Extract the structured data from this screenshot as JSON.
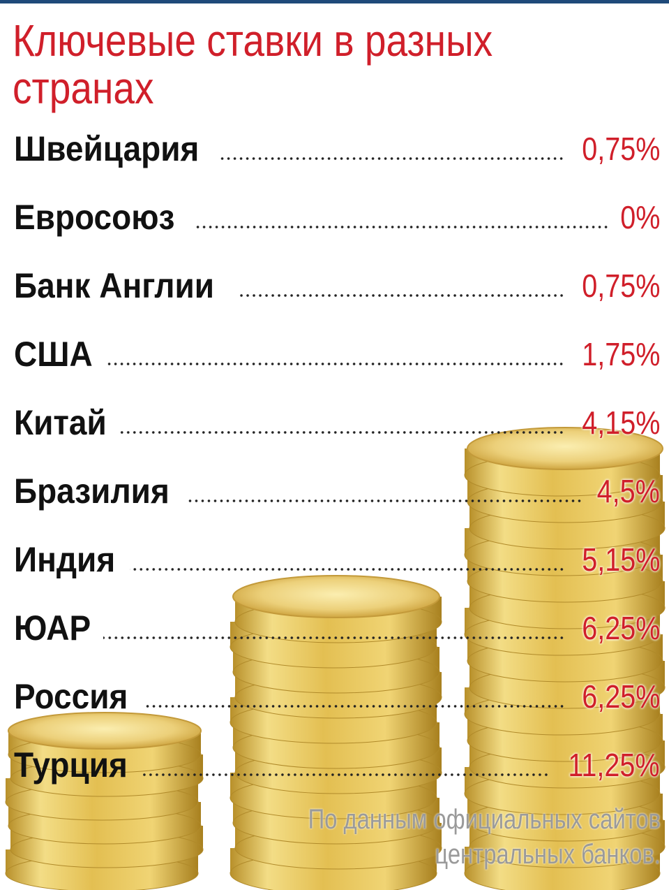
{
  "chart_data": {
    "type": "table",
    "title": "Ключевые ставки в разных странах",
    "rows": [
      {
        "label": "Швейцария",
        "value": "0,75%"
      },
      {
        "label": "Евросоюз",
        "value": "0%"
      },
      {
        "label": "Банк Англии",
        "value": "0,75%"
      },
      {
        "label": "США",
        "value": "1,75%"
      },
      {
        "label": "Китай",
        "value": "4,15%"
      },
      {
        "label": "Бразилия",
        "value": "4,5%"
      },
      {
        "label": "Индия",
        "value": "5,15%"
      },
      {
        "label": "ЮАР",
        "value": "6,25%"
      },
      {
        "label": "Россия",
        "value": "6,25%"
      },
      {
        "label": "Турция",
        "value": "11,25%"
      }
    ],
    "source_line1": "По данным официальных сайтов",
    "source_line2": "центральных банков."
  },
  "colors": {
    "accent": "#d01f2a",
    "label": "#111111",
    "source": "#9a9a9a",
    "rule": "#1f4a7a",
    "coin": "#e4c050"
  }
}
